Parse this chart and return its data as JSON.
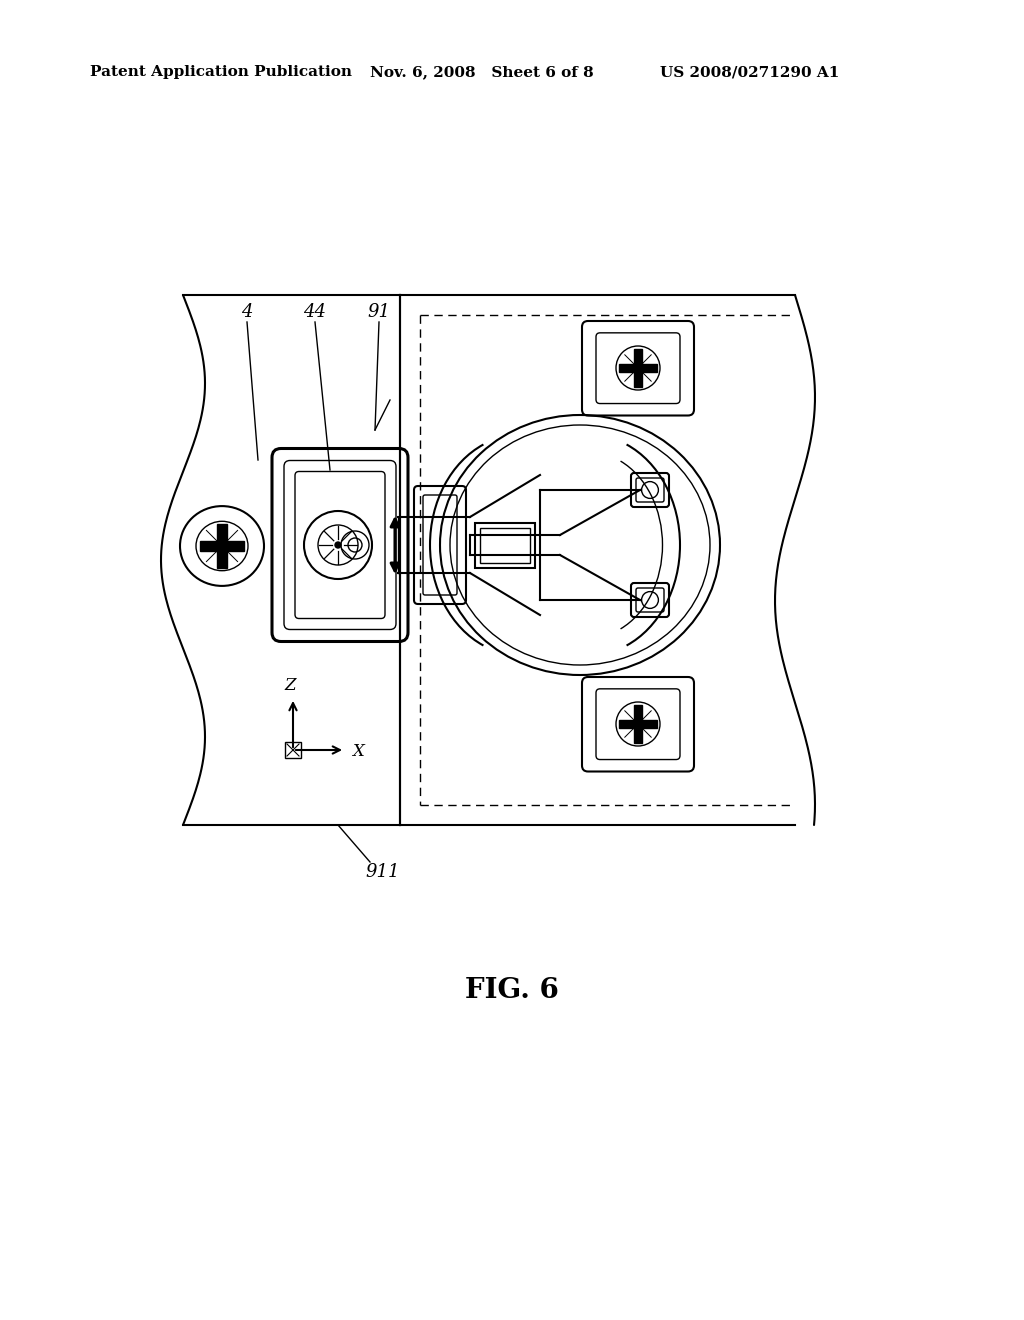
{
  "title": "FIG. 6",
  "header_left": "Patent Application Publication",
  "header_center": "Nov. 6, 2008   Sheet 6 of 8",
  "header_right": "US 2008/0271290 A1",
  "label_4": "4",
  "label_44": "44",
  "label_91": "91",
  "label_911": "911",
  "bg_color": "#ffffff",
  "line_color": "#000000",
  "fig_title_fontsize": 20,
  "header_fontsize": 11,
  "label_fontsize": 13
}
